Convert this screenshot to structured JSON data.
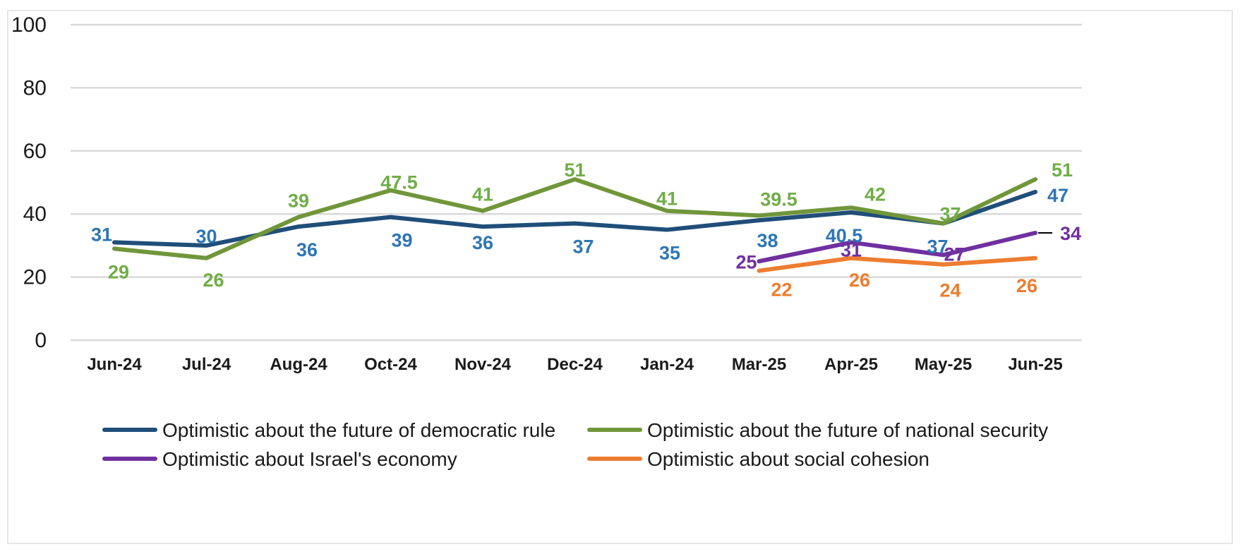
{
  "chart_data": {
    "type": "line",
    "title": "",
    "xlabel": "",
    "ylabel": "",
    "ylim": [
      0,
      100
    ],
    "yticks": [
      0,
      20,
      40,
      60,
      80,
      100
    ],
    "grid": true,
    "legend_position": "bottom",
    "categories": [
      "Jun-24",
      "Jul-24",
      "Aug-24",
      "Oct-24",
      "Nov-24",
      "Dec-24",
      "Jan-24",
      "Mar-25",
      "Apr-25",
      "May-25",
      "Jun-25"
    ],
    "series": [
      {
        "name": "Optimistic about the future of democratic rule",
        "color": "#1f4e79",
        "values": [
          31,
          30,
          36,
          39,
          36,
          37,
          35,
          38,
          40.5,
          37,
          47
        ],
        "labels": [
          "31",
          "30",
          "36",
          "39",
          "36",
          "37",
          "35",
          "38",
          "40.5",
          "37",
          "47"
        ],
        "label_color": "#2e75b6"
      },
      {
        "name": "Optimistic about the future of national security",
        "color": "#70963a",
        "values": [
          29,
          26,
          39,
          47.5,
          41,
          51,
          41,
          39.5,
          42,
          37,
          51
        ],
        "labels": [
          "29",
          "26",
          "39",
          "47.5",
          "41",
          "51",
          "41",
          "39.5",
          "42",
          "37",
          "51"
        ],
        "label_color": "#70ad47"
      },
      {
        "name": "Optimistic about Israel's economy",
        "color": "#7030a0",
        "values": [
          null,
          null,
          null,
          null,
          null,
          null,
          null,
          25,
          31,
          27,
          34
        ],
        "labels": [
          "",
          "",
          "",
          "",
          "",
          "",
          "",
          "25",
          "31",
          "27",
          "34"
        ],
        "label_color": "#7030a0"
      },
      {
        "name": "Optimistic about social cohesion",
        "color": "#ed7d31",
        "values": [
          null,
          null,
          null,
          null,
          null,
          null,
          null,
          22,
          26,
          24,
          26
        ],
        "labels": [
          "",
          "",
          "",
          "",
          "",
          "",
          "",
          "22",
          "26",
          "24",
          "26"
        ],
        "label_color": "#ed7d31"
      }
    ]
  }
}
